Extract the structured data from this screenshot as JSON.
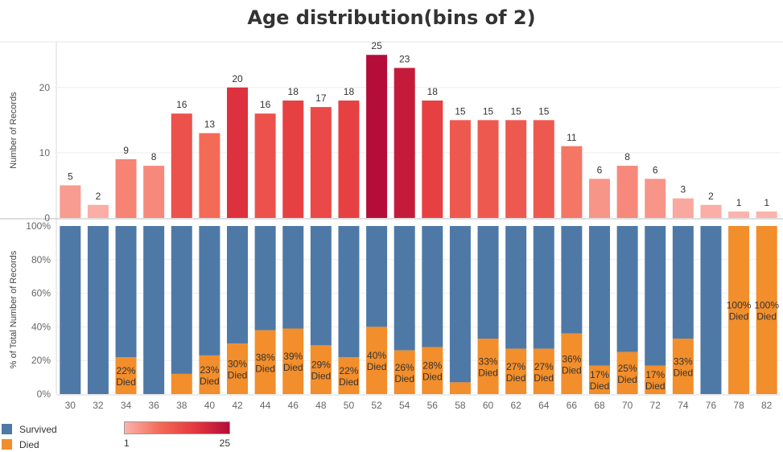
{
  "title": "Age distribution(bins of 2)",
  "chart_data": [
    {
      "type": "bar",
      "ylabel": "Number of Records",
      "yticks": [
        0,
        10,
        20
      ],
      "ylim": [
        0,
        27
      ],
      "categories": [
        "30",
        "32",
        "34",
        "36",
        "38",
        "40",
        "42",
        "44",
        "46",
        "48",
        "50",
        "52",
        "54",
        "56",
        "58",
        "60",
        "62",
        "64",
        "66",
        "68",
        "70",
        "72",
        "74",
        "76",
        "78",
        "82"
      ],
      "values": [
        5,
        2,
        9,
        8,
        16,
        13,
        20,
        16,
        18,
        17,
        18,
        25,
        23,
        18,
        15,
        15,
        15,
        15,
        11,
        6,
        8,
        6,
        3,
        2,
        1,
        1
      ],
      "color_legend": {
        "min_label": "1",
        "max_label": "25",
        "min_color": "#fbb4ad",
        "max_color": "#b50d39"
      }
    },
    {
      "type": "bar",
      "stacked": true,
      "percent": true,
      "ylabel": "% of Total Number of Records",
      "yticks": [
        "0%",
        "20%",
        "40%",
        "60%",
        "80%",
        "100%"
      ],
      "categories": [
        "30",
        "32",
        "34",
        "36",
        "38",
        "40",
        "42",
        "44",
        "46",
        "48",
        "50",
        "52",
        "54",
        "56",
        "58",
        "60",
        "62",
        "64",
        "66",
        "68",
        "70",
        "72",
        "74",
        "76",
        "78",
        "82"
      ],
      "series": [
        {
          "name": "Survived",
          "color": "#4e79a7",
          "values": [
            100,
            100,
            78,
            100,
            88,
            77,
            70,
            62,
            61,
            71,
            78,
            60,
            74,
            72,
            93,
            67,
            73,
            73,
            64,
            83,
            75,
            83,
            67,
            100,
            0,
            0
          ]
        },
        {
          "name": "Died",
          "color": "#f28e2b",
          "values": [
            0,
            0,
            22,
            0,
            12,
            23,
            30,
            38,
            39,
            29,
            22,
            40,
            26,
            28,
            7,
            33,
            27,
            27,
            36,
            17,
            25,
            17,
            33,
            0,
            100,
            100
          ],
          "labels": [
            "",
            "",
            "22%",
            "",
            "",
            "23%",
            "30%",
            "38%",
            "39%",
            "29%",
            "22%",
            "40%",
            "26%",
            "28%",
            "",
            "33%",
            "27%",
            "27%",
            "36%",
            "17%",
            "25%",
            "17%",
            "33%",
            "",
            "100%",
            "100%"
          ],
          "label_suffix": "Died"
        }
      ]
    }
  ]
}
